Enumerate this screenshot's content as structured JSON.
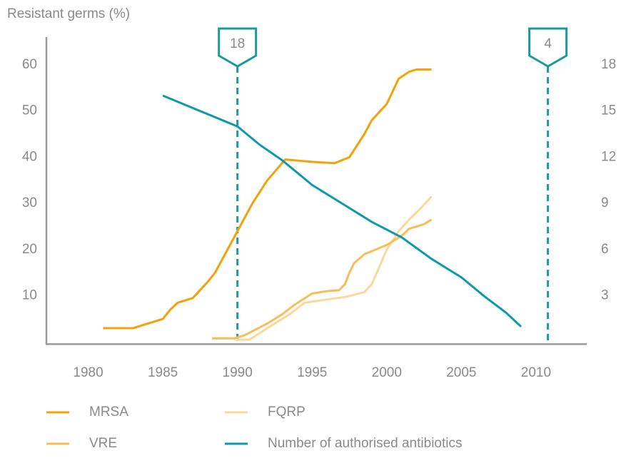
{
  "chart_data": {
    "type": "line",
    "y_label": "Resistant germs (%)",
    "xlim": [
      1977.2,
      2013.4
    ],
    "xticks": [
      1980,
      1985,
      1990,
      1995,
      2000,
      2005,
      2010
    ],
    "ylim": [
      0,
      66
    ],
    "yticks": [
      10,
      20,
      30,
      40,
      50,
      60
    ],
    "y2lim": [
      0,
      19.8
    ],
    "y2ticks": [
      3,
      6,
      9,
      12,
      15,
      18
    ],
    "annotations": [
      {
        "x": 1990,
        "label": "18"
      },
      {
        "x": 2010.8,
        "label": "4"
      }
    ],
    "annotation_color": "#1a9aa0",
    "series": [
      {
        "name": "MRSA",
        "color": "#f0a30a",
        "x": [
          1981,
          1983,
          1985,
          1985.5,
          1986,
          1986.5,
          1987,
          1988,
          1988.5,
          1990,
          1991,
          1992,
          1993.2,
          1995,
          1996.5,
          1997.5,
          1998.5,
          1999,
          2000,
          2000.8,
          2001.5,
          2002,
          2003
        ],
        "values": [
          3,
          3,
          5,
          7,
          8.5,
          9,
          9.5,
          13,
          15,
          24,
          30,
          35,
          39.5,
          39,
          38.7,
          40,
          45,
          48,
          51.5,
          57,
          58.5,
          59,
          59
        ]
      },
      {
        "name": "FQRP",
        "color": "#fad89a",
        "x": [
          1989.8,
          1990.8,
          1992,
          1993.5,
          1994.5,
          1996,
          1997.3,
          1998.5,
          1999,
          2000,
          2000.8,
          2001.5,
          2002.3,
          2003
        ],
        "values": [
          0.5,
          0.5,
          3,
          6,
          8.5,
          9.2,
          9.8,
          10.8,
          12.5,
          20,
          24,
          26.5,
          29,
          31.5
        ]
      },
      {
        "name": "VRE",
        "color": "#f5be5a",
        "x": [
          1988.3,
          1989.8,
          1990.5,
          1992,
          1993,
          1993.8,
          1995,
          1996,
          1996.8,
          1997.2,
          1997.5,
          1997.8,
          1998.5,
          2000,
          2001,
          2001.5,
          2002.5,
          2003
        ],
        "values": [
          0.8,
          0.8,
          1.5,
          4,
          6,
          8,
          10.5,
          11,
          11.2,
          12.5,
          15,
          17,
          19,
          21,
          23,
          24.5,
          25.5,
          26.5
        ]
      },
      {
        "name": "Number of authorised antibiotics",
        "color": "#0e9aaa",
        "axis": "y2",
        "x": [
          1985,
          1990,
          1991.5,
          1993,
          1995,
          1997,
          1999,
          2001,
          2003,
          2005,
          2006.5,
          2008,
          2009
        ],
        "values": [
          16,
          14,
          12.8,
          11.8,
          10.2,
          9,
          7.8,
          6.8,
          5.4,
          4.2,
          3,
          1.9,
          1
        ]
      }
    ]
  }
}
